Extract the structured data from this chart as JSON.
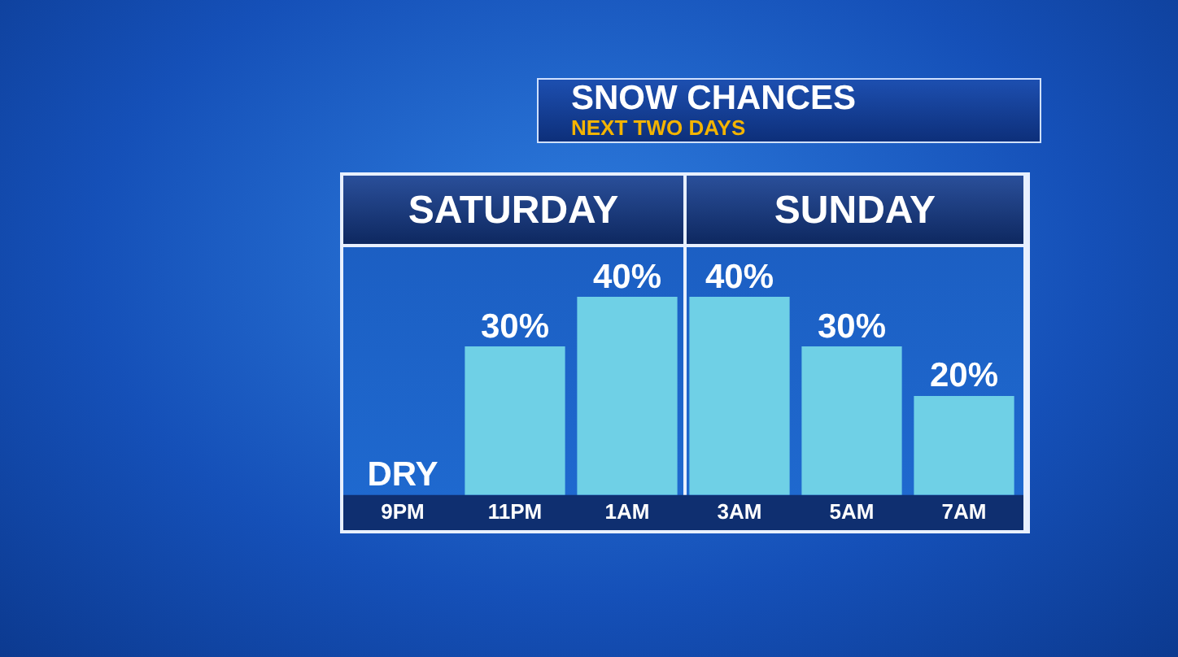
{
  "chart_data": {
    "type": "bar",
    "title": "SNOW CHANCES",
    "subtitle": "NEXT TWO DAYS",
    "annotations": [
      "SATURDAY",
      "SUNDAY"
    ],
    "categories": [
      "9PM",
      "11PM",
      "1AM",
      "3AM",
      "5AM",
      "7AM"
    ],
    "values": [
      0,
      30,
      40,
      40,
      30,
      20
    ],
    "value_labels": [
      "DRY",
      "30%",
      "40%",
      "40%",
      "30%",
      "20%"
    ],
    "color": "#6fd0e6",
    "grid": false,
    "legend": false
  }
}
